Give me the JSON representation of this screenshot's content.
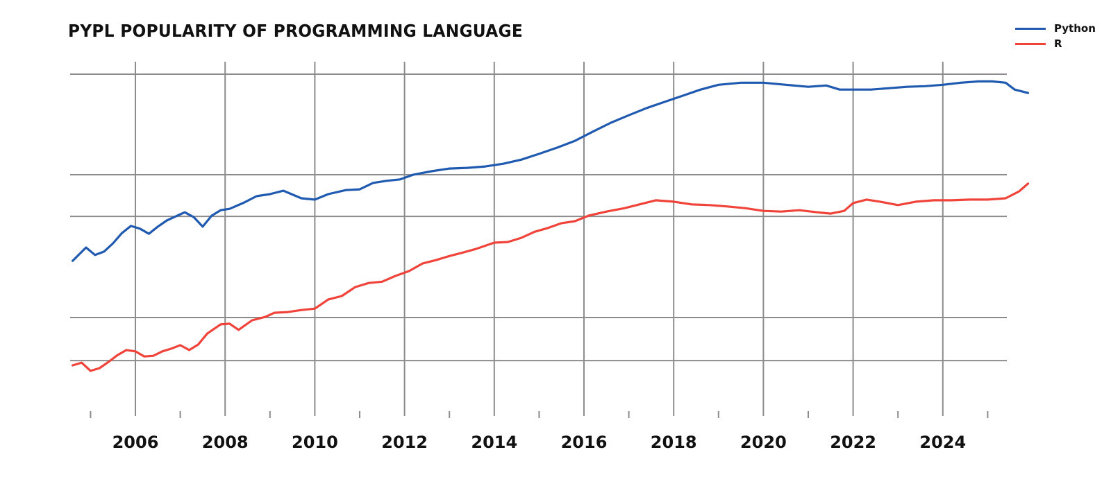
{
  "title": "PYPL POPULARITY OF PROGRAMMING LANGUAGE",
  "legend": [
    {
      "label": "Python",
      "color": "#1f5ab0"
    },
    {
      "label": "R",
      "color": "#f0433a"
    }
  ],
  "x_axis": {
    "labels": [
      "2006",
      "2008",
      "2010",
      "2012",
      "2014",
      "2016",
      "2018",
      "2020",
      "2022",
      "2024"
    ]
  },
  "chart_data": {
    "type": "line",
    "title": "PYPL POPULARITY OF PROGRAMMING LANGUAGE",
    "xlabel": "",
    "ylabel": "",
    "xlim": [
      2004.6,
      2025.9
    ],
    "ylim": [
      0,
      100
    ],
    "y_units_note": "no y-axis tick labels shown; values are relative positions (0 = plot bottom, 100 = top gridline)",
    "grid": true,
    "legend_position": "top-right",
    "x_major_ticks": [
      2006,
      2008,
      2010,
      2012,
      2014,
      2016,
      2018,
      2020,
      2022,
      2024
    ],
    "x_minor_ticks": [
      2005,
      2007,
      2009,
      2011,
      2013,
      2015,
      2017,
      2019,
      2021,
      2023,
      2025
    ],
    "y_gridlines": [
      100,
      70.6,
      58.4,
      28.8,
      16.2
    ],
    "series": [
      {
        "name": "Python",
        "color": "#1f5ab0",
        "x": [
          2004.6,
          2004.9,
          2005.1,
          2005.3,
          2005.5,
          2005.7,
          2005.9,
          2006.1,
          2006.3,
          2006.5,
          2006.7,
          2006.9,
          2007.1,
          2007.3,
          2007.5,
          2007.7,
          2007.9,
          2008.1,
          2008.4,
          2008.7,
          2009.0,
          2009.3,
          2009.7,
          2010.0,
          2010.3,
          2010.7,
          2011.0,
          2011.3,
          2011.6,
          2011.9,
          2012.2,
          2012.6,
          2013.0,
          2013.4,
          2013.8,
          2014.2,
          2014.6,
          2015.0,
          2015.4,
          2015.8,
          2016.2,
          2016.6,
          2017.0,
          2017.4,
          2017.8,
          2018.2,
          2018.6,
          2019.0,
          2019.5,
          2020.0,
          2020.5,
          2021.0,
          2021.4,
          2021.7,
          2022.0,
          2022.4,
          2022.8,
          2023.2,
          2023.6,
          2024.0,
          2024.4,
          2024.8,
          2025.1,
          2025.4,
          2025.6,
          2025.9
        ],
        "values": [
          45.4,
          49.3,
          47.1,
          48.1,
          50.5,
          53.5,
          55.6,
          54.8,
          53.3,
          55.4,
          57.2,
          58.4,
          59.6,
          58.2,
          55.4,
          58.6,
          60.2,
          60.6,
          62.3,
          64.3,
          64.9,
          65.9,
          63.7,
          63.3,
          64.9,
          66.1,
          66.3,
          68.2,
          68.8,
          69.2,
          70.6,
          71.6,
          72.4,
          72.6,
          73.0,
          73.8,
          75.0,
          76.7,
          78.5,
          80.5,
          83.2,
          85.8,
          88.0,
          90.1,
          91.9,
          93.7,
          95.5,
          96.9,
          97.5,
          97.5,
          96.9,
          96.3,
          96.7,
          95.5,
          95.5,
          95.5,
          95.9,
          96.3,
          96.5,
          96.9,
          97.5,
          97.9,
          97.9,
          97.5,
          95.5,
          94.5
        ]
      },
      {
        "name": "R",
        "color": "#f0433a",
        "x": [
          2004.6,
          2004.8,
          2005.0,
          2005.2,
          2005.4,
          2005.6,
          2005.8,
          2006.0,
          2006.2,
          2006.4,
          2006.6,
          2006.8,
          2007.0,
          2007.2,
          2007.4,
          2007.6,
          2007.9,
          2008.1,
          2008.3,
          2008.6,
          2008.9,
          2009.1,
          2009.4,
          2009.7,
          2010.0,
          2010.3,
          2010.6,
          2010.9,
          2011.2,
          2011.5,
          2011.8,
          2012.1,
          2012.4,
          2012.7,
          2013.0,
          2013.3,
          2013.6,
          2014.0,
          2014.3,
          2014.6,
          2014.9,
          2015.2,
          2015.5,
          2015.8,
          2016.1,
          2016.5,
          2016.9,
          2017.3,
          2017.6,
          2018.0,
          2018.4,
          2018.8,
          2019.2,
          2019.6,
          2020.0,
          2020.4,
          2020.8,
          2021.2,
          2021.5,
          2021.8,
          2022.0,
          2022.3,
          2022.6,
          2023.0,
          2023.4,
          2023.8,
          2024.2,
          2024.6,
          2025.0,
          2025.4,
          2025.7,
          2025.9
        ],
        "values": [
          14.8,
          15.6,
          13.2,
          14.0,
          15.8,
          17.8,
          19.3,
          18.9,
          17.4,
          17.6,
          18.9,
          19.7,
          20.7,
          19.3,
          20.9,
          24.1,
          26.8,
          27.0,
          25.2,
          28.0,
          29.0,
          30.2,
          30.4,
          31.0,
          31.4,
          34.1,
          35.1,
          37.7,
          38.9,
          39.3,
          41.0,
          42.4,
          44.6,
          45.6,
          46.8,
          47.8,
          48.9,
          50.7,
          50.9,
          52.1,
          53.9,
          55.0,
          56.4,
          57.0,
          58.6,
          59.8,
          60.8,
          62.1,
          63.1,
          62.7,
          61.9,
          61.7,
          61.3,
          60.8,
          60.0,
          59.8,
          60.2,
          59.6,
          59.2,
          60.0,
          62.3,
          63.3,
          62.7,
          61.7,
          62.7,
          63.1,
          63.1,
          63.3,
          63.3,
          63.7,
          65.7,
          68.0
        ]
      }
    ]
  }
}
